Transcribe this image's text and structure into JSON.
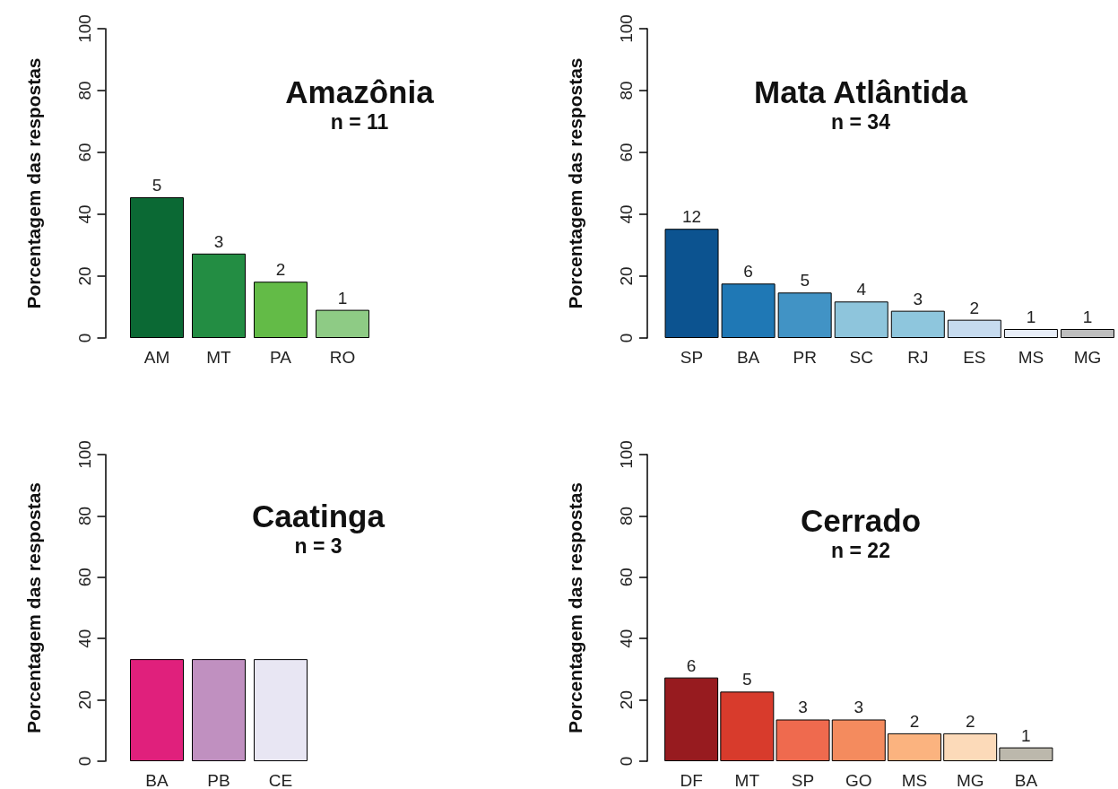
{
  "chart_data": [
    {
      "type": "bar",
      "title": "Amazônia",
      "subtitle": "n = 11",
      "ylabel": "Porcentagem das respostas",
      "categories": [
        "AM",
        "MT",
        "PA",
        "RO"
      ],
      "values": [
        45.5,
        27.3,
        18.2,
        9.1
      ],
      "colors": [
        "#0b6934",
        "#238d43",
        "#63bb47",
        "#8ecb85"
      ],
      "ylim": [
        0,
        100
      ],
      "yticks": [
        0,
        20,
        40,
        60,
        80,
        100
      ],
      "annotations": [
        {
          "text": "5",
          "x": "AM",
          "y": 45.5
        },
        {
          "text": "3",
          "x": "MT",
          "y": 27.3
        },
        {
          "text": "2",
          "x": "PA",
          "y": 18.2
        },
        {
          "text": "1",
          "x": "RO",
          "y": 9.1
        }
      ]
    },
    {
      "type": "bar",
      "title": "Mata Atlântida",
      "subtitle": "n = 34",
      "ylabel": "Porcentagem das respostas",
      "categories": [
        "SP",
        "BA",
        "PR",
        "SC",
        "RJ",
        "ES",
        "MS",
        "MG"
      ],
      "values": [
        35.3,
        17.6,
        14.7,
        11.8,
        8.8,
        5.9,
        2.9,
        2.9
      ],
      "colors": [
        "#0c5390",
        "#1f78b5",
        "#4193c5",
        "#8ec5dc",
        "#8ec6dd",
        "#c6dbef",
        "#e8eef8",
        "#bebebe"
      ],
      "ylim": [
        0,
        100
      ],
      "yticks": [
        0,
        20,
        40,
        60,
        80,
        100
      ],
      "annotations": [
        {
          "text": "12",
          "x": "SP",
          "y": 35.3
        },
        {
          "text": "6",
          "x": "BA",
          "y": 17.6
        },
        {
          "text": "5",
          "x": "PR",
          "y": 14.7
        },
        {
          "text": "4",
          "x": "SC",
          "y": 11.8
        },
        {
          "text": "3",
          "x": "RJ",
          "y": 8.8
        },
        {
          "text": "2",
          "x": "ES",
          "y": 5.9
        },
        {
          "text": "1",
          "x": "MS",
          "y": 2.9
        },
        {
          "text": "1",
          "x": "MG",
          "y": 2.9
        }
      ]
    },
    {
      "type": "bar",
      "title": "Caatinga",
      "subtitle": "n = 3",
      "ylabel": "Porcentagem das respostas",
      "categories": [
        "BA",
        "PB",
        "CE"
      ],
      "values": [
        33.3,
        33.3,
        33.3
      ],
      "colors": [
        "#e0207c",
        "#c090c0",
        "#e8e6f3"
      ],
      "ylim": [
        0,
        100
      ],
      "yticks": [
        0,
        20,
        40,
        60,
        80,
        100
      ]
    },
    {
      "type": "bar",
      "title": "Cerrado",
      "subtitle": "n = 22",
      "ylabel": "Porcentagem das respostas",
      "categories": [
        "DF",
        "MT",
        "SP",
        "GO",
        "MS",
        "MG",
        "BA"
      ],
      "values": [
        27.3,
        22.7,
        13.6,
        13.6,
        9.1,
        9.1,
        4.5
      ],
      "colors": [
        "#971b1f",
        "#d83b2c",
        "#ef6a4e",
        "#f48b5e",
        "#fbb37f",
        "#fcdab9",
        "#bcb8ac"
      ],
      "ylim": [
        0,
        100
      ],
      "yticks": [
        0,
        20,
        40,
        60,
        80,
        100
      ],
      "annotations": [
        {
          "text": "6",
          "x": "DF",
          "y": 27.3
        },
        {
          "text": "5",
          "x": "MT",
          "y": 22.7
        },
        {
          "text": "3",
          "x": "SP",
          "y": 13.6
        },
        {
          "text": "3",
          "x": "GO",
          "y": 13.6
        },
        {
          "text": "2",
          "x": "MS",
          "y": 9.1
        },
        {
          "text": "2",
          "x": "MG",
          "y": 9.1
        },
        {
          "text": "1",
          "x": "BA",
          "y": 4.5
        }
      ]
    }
  ]
}
